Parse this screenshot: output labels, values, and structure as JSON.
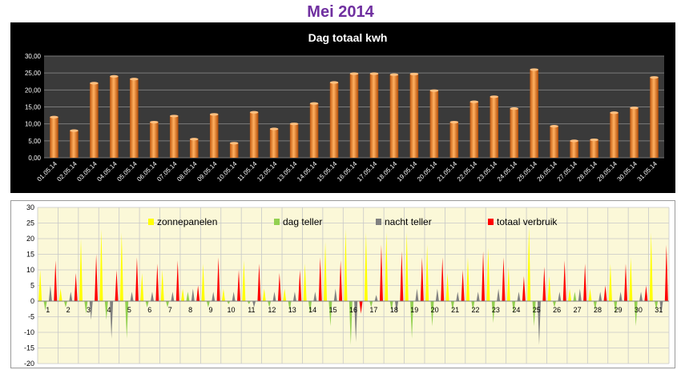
{
  "page": {
    "title": "Mei 2014"
  },
  "colors": {
    "title": "#7030a0",
    "bar_orange": "#f79646",
    "chart1_bg": "#000000",
    "plot1_bg": "#3a3a3a",
    "zonnepanelen": "#ffff00",
    "dag_teller": "#92d050",
    "nacht_teller": "#808080",
    "totaal_verbruik": "#ff0000",
    "plot2_bg": "#fbf8d8"
  },
  "chart_data": [
    {
      "type": "bar",
      "title": "Dag totaal kwh",
      "xlabel": "",
      "ylabel": "",
      "ylim": [
        0,
        30
      ],
      "yticks": [
        "0,00",
        "5,00",
        "10,00",
        "15,00",
        "20,00",
        "25,00",
        "30,00"
      ],
      "grid": true,
      "categories": [
        "01.05.14",
        "02.05.14",
        "03.05.14",
        "04.05.14",
        "05.05.14",
        "06.05.14",
        "07.05.14",
        "08.05.14",
        "09.05.14",
        "10.05.14",
        "11.05.14",
        "12.05.14",
        "13.05.14",
        "14.05.14",
        "15.05.14",
        "16.05.14",
        "17.05.14",
        "18.05.14",
        "19.05.14",
        "20.05.14",
        "21.05.14",
        "22.05.14",
        "23.05.14",
        "24.05.14",
        "25.05.14",
        "26.05.14",
        "27.05.14",
        "28.05.14",
        "29.05.14",
        "30.05.14",
        "31.05.14"
      ],
      "values": [
        12.0,
        8.0,
        22.0,
        24.0,
        23.2,
        10.5,
        12.3,
        5.5,
        12.8,
        4.3,
        13.4,
        8.5,
        10.0,
        16.0,
        22.2,
        24.8,
        24.8,
        24.5,
        24.7,
        19.8,
        10.5,
        16.5,
        18.0,
        14.5,
        26.0,
        9.3,
        5.0,
        5.3,
        13.3,
        14.7,
        23.7
      ]
    },
    {
      "type": "bar",
      "title": "",
      "xlabel": "",
      "ylabel": "",
      "ylim": [
        -20,
        30
      ],
      "yticks": [
        "-20",
        "-15",
        "-10",
        "-5",
        "0",
        "5",
        "10",
        "15",
        "20",
        "25",
        "30"
      ],
      "grid": true,
      "legend_position": "top",
      "categories": [
        "1",
        "2",
        "3",
        "4",
        "5",
        "6",
        "7",
        "8",
        "9",
        "10",
        "11",
        "12",
        "13",
        "14",
        "15",
        "16",
        "17",
        "18",
        "19",
        "20",
        "21",
        "22",
        "23",
        "24",
        "25",
        "26",
        "27",
        "28",
        "29",
        "30",
        "31"
      ],
      "series": [
        {
          "name": "zonnepanelen",
          "values": [
            10,
            4,
            20,
            23,
            22,
            9,
            10,
            4,
            12,
            4,
            13,
            4,
            4,
            12,
            19,
            23,
            22,
            22,
            22,
            18,
            9,
            14,
            17,
            11,
            24,
            8,
            4,
            4,
            12,
            14,
            22
          ]
        },
        {
          "name": "dag teller",
          "values": [
            -3,
            -2,
            -4,
            -6,
            -12,
            -2,
            -2,
            3,
            -2,
            -1,
            -1,
            -2,
            -3,
            -4,
            -8,
            -14,
            -2,
            -3,
            -12,
            -8,
            -3,
            -3,
            -7,
            -4,
            -8,
            -2,
            3,
            -3,
            -4,
            -8,
            -3
          ]
        },
        {
          "name": "nacht teller",
          "values": [
            5,
            3,
            -6,
            -12,
            3,
            3,
            3,
            4,
            3,
            3,
            -2,
            3,
            3,
            3,
            4,
            -13,
            2,
            -4,
            4,
            4,
            3,
            3,
            4,
            3,
            -14,
            3,
            4,
            3,
            3,
            3,
            -4
          ]
        },
        {
          "name": "totaal verbruik",
          "values": [
            13,
            9,
            15,
            10,
            14,
            12,
            13,
            5,
            14,
            10,
            12,
            9,
            10,
            14,
            13,
            -4,
            18,
            16,
            14,
            14,
            10,
            16,
            14,
            8,
            11,
            13,
            12,
            5,
            12,
            5,
            18
          ]
        }
      ]
    }
  ]
}
